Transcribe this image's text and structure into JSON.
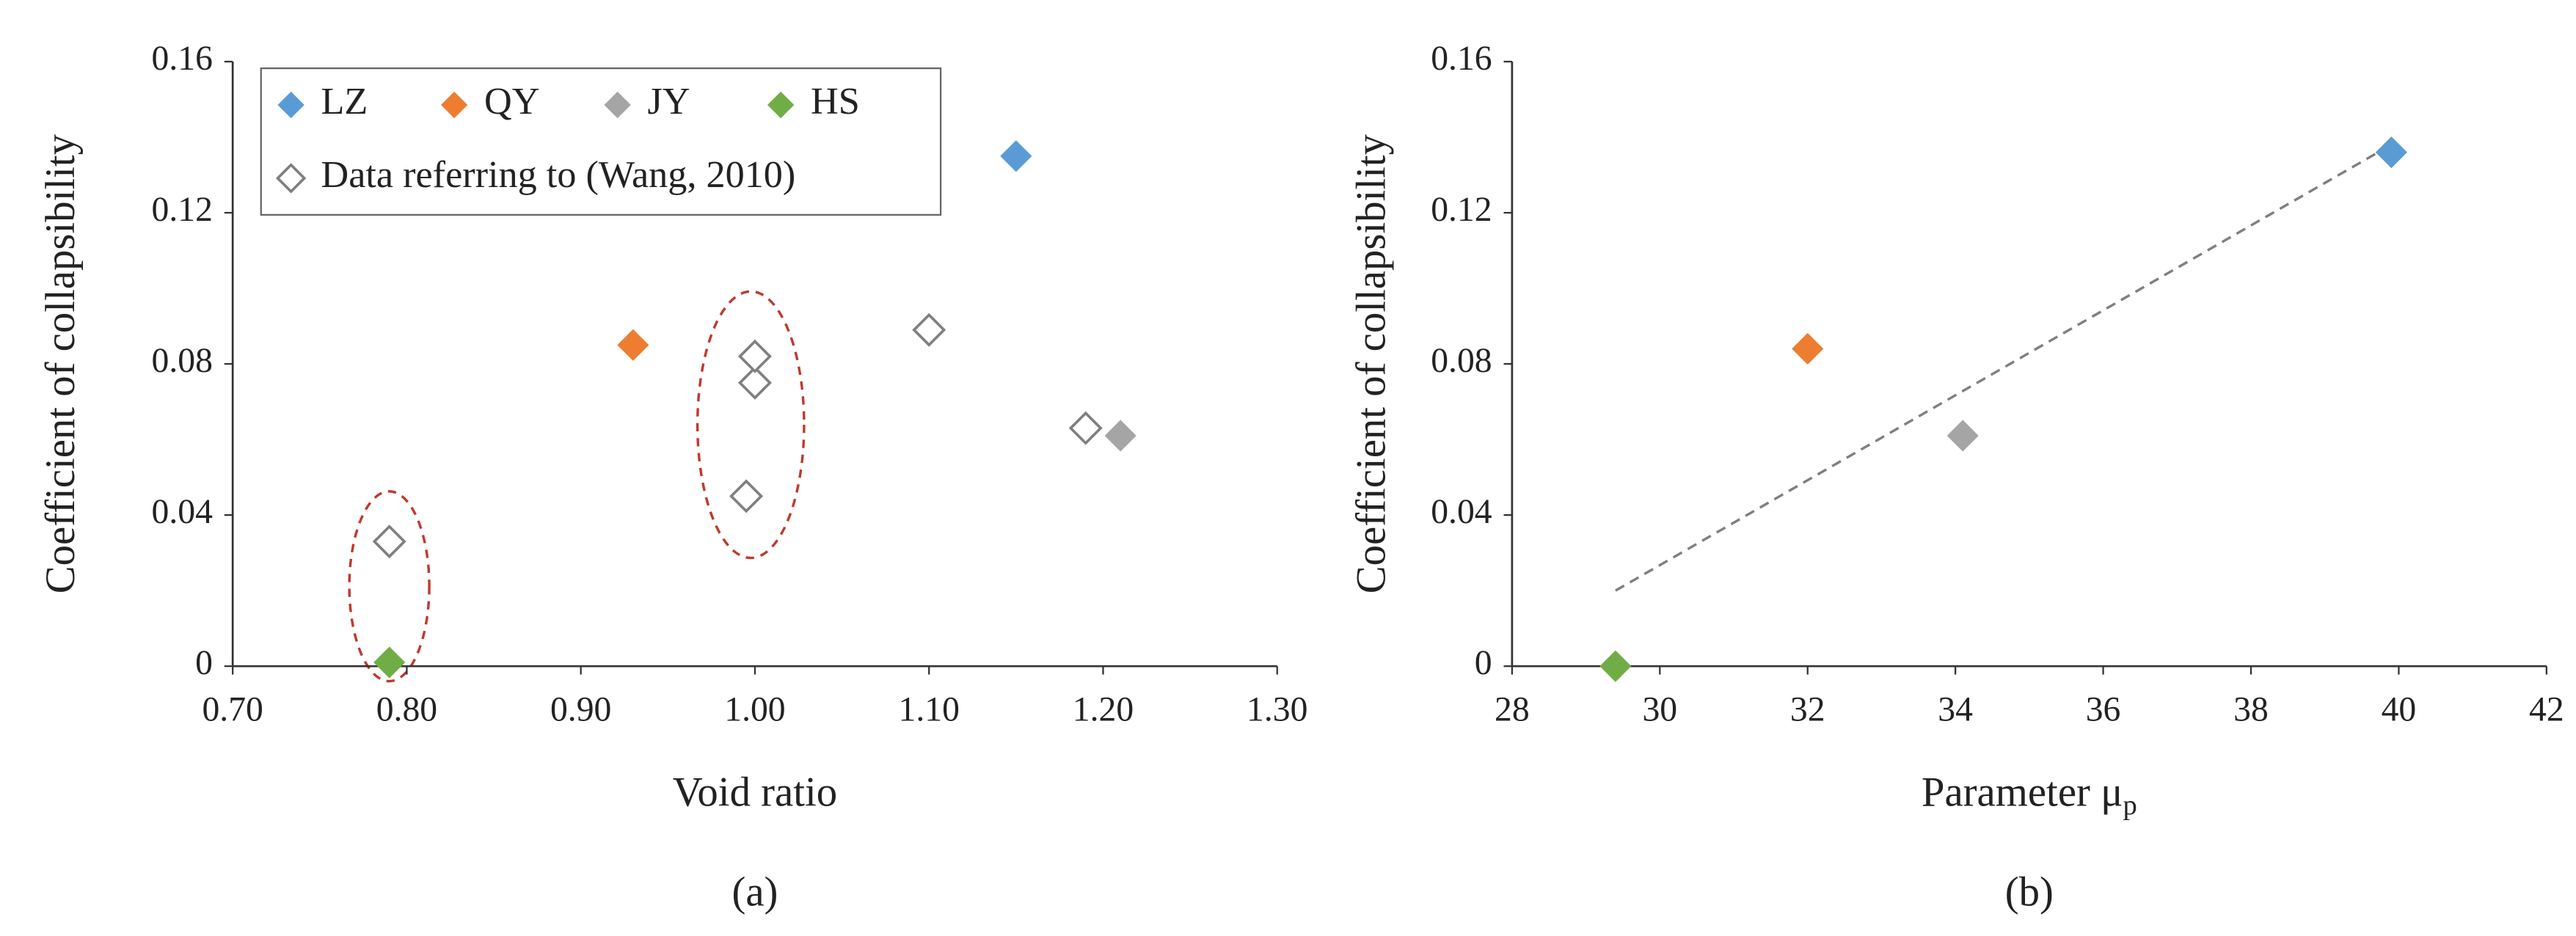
{
  "chart_data": [
    {
      "type": "scatter",
      "xlabel": "Void ratio",
      "ylabel": "Coefficient of collapsibility",
      "caption": "(a)",
      "xlim": [
        0.7,
        1.3
      ],
      "xticks": [
        {
          "value": 0.7,
          "label": "0.70"
        },
        {
          "value": 0.8,
          "label": "0.80"
        },
        {
          "value": 0.9,
          "label": "0.90"
        },
        {
          "value": 1.0,
          "label": "1.00"
        },
        {
          "value": 1.1,
          "label": "1.10"
        },
        {
          "value": 1.2,
          "label": "1.20"
        },
        {
          "value": 1.3,
          "label": "1.30"
        }
      ],
      "ylim": [
        0,
        0.16
      ],
      "yticks": [
        0,
        0.04,
        0.08,
        0.12,
        0.16
      ],
      "legend": "upper left",
      "series": [
        {
          "name": "LZ",
          "color": "#5b9bd5",
          "marker": "filled",
          "x": [
            1.15
          ],
          "values": [
            0.135
          ]
        },
        {
          "name": "QY",
          "color": "#ed7d31",
          "marker": "filled",
          "x": [
            0.93
          ],
          "values": [
            0.085
          ]
        },
        {
          "name": "JY",
          "color": "#a5a5a5",
          "marker": "filled",
          "x": [
            1.21
          ],
          "values": [
            0.061
          ]
        },
        {
          "name": "HS",
          "color": "#70ad47",
          "marker": "filled",
          "x": [
            0.79
          ],
          "values": [
            0.001
          ]
        },
        {
          "name": "Data referring to (Wang, 2010)",
          "color": "#7f7f7f",
          "marker": "open",
          "x": [
            0.79,
            0.995,
            1.0,
            1.0,
            1.1,
            1.19
          ],
          "values": [
            0.033,
            0.045,
            0.075,
            0.082,
            0.089,
            0.063
          ]
        }
      ]
    },
    {
      "type": "scatter",
      "xlabel": "Parameter μ",
      "xlabel_sub": "p",
      "ylabel": "Coefficient of collapsibility",
      "caption": "(b)",
      "xlim": [
        28,
        42
      ],
      "xticks": [
        28,
        30,
        32,
        34,
        36,
        38,
        40,
        42
      ],
      "ylim": [
        0,
        0.16
      ],
      "yticks": [
        0,
        0.04,
        0.08,
        0.12,
        0.16
      ],
      "series": [
        {
          "color": "#5b9bd5",
          "marker": "filled",
          "x": [
            39.9
          ],
          "values": [
            0.136
          ]
        },
        {
          "color": "#ed7d31",
          "marker": "filled",
          "x": [
            32.0
          ],
          "values": [
            0.084
          ]
        },
        {
          "color": "#a5a5a5",
          "marker": "filled",
          "x": [
            34.1
          ],
          "values": [
            0.061
          ]
        },
        {
          "color": "#70ad47",
          "marker": "filled",
          "x": [
            29.4
          ],
          "values": [
            0.0
          ]
        }
      ],
      "trendline": {
        "x": [
          29.4,
          39.9
        ],
        "values": [
          0.02,
          0.138
        ],
        "color": "#7f7f7f",
        "style": "dashed"
      }
    }
  ]
}
